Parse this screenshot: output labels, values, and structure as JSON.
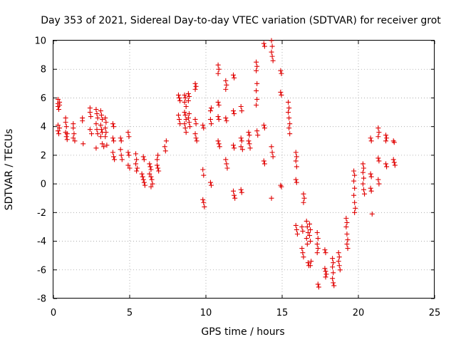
{
  "chart_data": {
    "type": "scatter",
    "title": "Day 353 of 2021, Sidereal Day-to-day VTEC variation (SDTVAR) for receiver grot",
    "xlabel": "GPS time / hours",
    "ylabel": "SDTVAR / TECUs",
    "xlim": [
      0,
      25
    ],
    "ylim": [
      -8,
      10
    ],
    "xticks": [
      "0",
      "5",
      "10",
      "15",
      "20",
      "25"
    ],
    "yticks": [
      "-8",
      "-6",
      "-4",
      "-2",
      "0",
      "2",
      "4",
      "6",
      "8",
      "10"
    ],
    "grid": true,
    "marker": "+",
    "color": "#e00000",
    "series": [
      {
        "name": "SDTVAR",
        "points": [
          [
            0.3,
            5.9
          ],
          [
            0.3,
            5.6
          ],
          [
            0.3,
            5.4
          ],
          [
            0.35,
            5.2
          ],
          [
            0.4,
            5.7
          ],
          [
            0.4,
            5.5
          ],
          [
            0.3,
            4.1
          ],
          [
            0.3,
            3.7
          ],
          [
            0.35,
            3.5
          ],
          [
            0.4,
            3.9
          ],
          [
            0.8,
            4.6
          ],
          [
            0.8,
            4.3
          ],
          [
            0.85,
            4.0
          ],
          [
            0.8,
            3.6
          ],
          [
            0.85,
            3.3
          ],
          [
            0.9,
            3.1
          ],
          [
            0.9,
            3.5
          ],
          [
            1.3,
            4.2
          ],
          [
            1.3,
            3.9
          ],
          [
            1.35,
            3.5
          ],
          [
            1.3,
            3.2
          ],
          [
            1.4,
            3.0
          ],
          [
            1.9,
            4.6
          ],
          [
            1.9,
            4.4
          ],
          [
            1.95,
            2.8
          ],
          [
            2.4,
            5.3
          ],
          [
            2.4,
            5.0
          ],
          [
            2.45,
            4.7
          ],
          [
            2.4,
            3.8
          ],
          [
            2.5,
            3.5
          ],
          [
            2.8,
            5.2
          ],
          [
            2.85,
            4.9
          ],
          [
            2.9,
            4.6
          ],
          [
            2.8,
            4.2
          ],
          [
            2.85,
            3.8
          ],
          [
            2.9,
            3.5
          ],
          [
            2.8,
            2.5
          ],
          [
            3.1,
            5.1
          ],
          [
            3.15,
            4.8
          ],
          [
            3.2,
            4.5
          ],
          [
            3.1,
            4.1
          ],
          [
            3.15,
            3.8
          ],
          [
            3.2,
            3.6
          ],
          [
            3.1,
            3.3
          ],
          [
            3.2,
            2.8
          ],
          [
            3.3,
            2.6
          ],
          [
            3.4,
            4.6
          ],
          [
            3.45,
            4.3
          ],
          [
            3.4,
            3.9
          ],
          [
            3.45,
            3.6
          ],
          [
            3.4,
            3.3
          ],
          [
            3.5,
            2.7
          ],
          [
            3.9,
            4.2
          ],
          [
            3.95,
            4.0
          ],
          [
            3.9,
            3.2
          ],
          [
            3.95,
            3.0
          ],
          [
            3.9,
            2.2
          ],
          [
            3.95,
            1.9
          ],
          [
            4.0,
            1.7
          ],
          [
            4.4,
            3.2
          ],
          [
            4.45,
            3.0
          ],
          [
            4.4,
            2.4
          ],
          [
            4.45,
            2.0
          ],
          [
            4.5,
            1.7
          ],
          [
            4.9,
            3.6
          ],
          [
            4.95,
            3.3
          ],
          [
            4.9,
            2.2
          ],
          [
            4.95,
            2.0
          ],
          [
            4.9,
            1.3
          ],
          [
            5.0,
            1.1
          ],
          [
            5.4,
            2.1
          ],
          [
            5.45,
            1.7
          ],
          [
            5.4,
            1.4
          ],
          [
            5.5,
            1.1
          ],
          [
            5.45,
            0.9
          ],
          [
            5.9,
            1.9
          ],
          [
            5.95,
            1.7
          ],
          [
            5.8,
            0.7
          ],
          [
            5.85,
            0.5
          ],
          [
            5.9,
            0.3
          ],
          [
            5.95,
            0.1
          ],
          [
            6.0,
            -0.1
          ],
          [
            6.3,
            1.4
          ],
          [
            6.35,
            1.2
          ],
          [
            6.4,
            1.0
          ],
          [
            6.3,
            0.7
          ],
          [
            6.4,
            0.5
          ],
          [
            6.45,
            0.3
          ],
          [
            6.5,
            0.0
          ],
          [
            6.4,
            -0.2
          ],
          [
            6.8,
            1.3
          ],
          [
            6.85,
            1.1
          ],
          [
            6.9,
            0.9
          ],
          [
            6.8,
            1.7
          ],
          [
            6.85,
            2.0
          ],
          [
            7.3,
            2.6
          ],
          [
            7.35,
            2.3
          ],
          [
            7.4,
            3.0
          ],
          [
            8.2,
            6.2
          ],
          [
            8.25,
            6.0
          ],
          [
            8.3,
            5.8
          ],
          [
            8.2,
            4.8
          ],
          [
            8.25,
            4.5
          ],
          [
            8.3,
            4.2
          ],
          [
            8.6,
            6.2
          ],
          [
            8.65,
            6.0
          ],
          [
            8.6,
            5.7
          ],
          [
            8.7,
            5.4
          ],
          [
            8.6,
            5.0
          ],
          [
            8.65,
            4.8
          ],
          [
            8.7,
            4.5
          ],
          [
            8.6,
            4.2
          ],
          [
            8.65,
            3.9
          ],
          [
            8.7,
            3.6
          ],
          [
            8.85,
            6.3
          ],
          [
            8.9,
            6.1
          ],
          [
            8.85,
            5.8
          ],
          [
            8.9,
            4.9
          ],
          [
            8.85,
            4.6
          ],
          [
            8.9,
            4.3
          ],
          [
            8.95,
            4.0
          ],
          [
            9.3,
            7.0
          ],
          [
            9.35,
            6.8
          ],
          [
            9.3,
            6.6
          ],
          [
            9.3,
            4.5
          ],
          [
            9.35,
            4.2
          ],
          [
            9.3,
            3.5
          ],
          [
            9.35,
            3.2
          ],
          [
            9.4,
            3.0
          ],
          [
            9.8,
            4.1
          ],
          [
            9.85,
            3.9
          ],
          [
            9.8,
            1.0
          ],
          [
            9.85,
            0.6
          ],
          [
            9.8,
            -1.1
          ],
          [
            9.85,
            -1.3
          ],
          [
            9.9,
            -1.6
          ],
          [
            10.3,
            4.5
          ],
          [
            10.35,
            4.2
          ],
          [
            10.3,
            5.1
          ],
          [
            10.35,
            5.3
          ],
          [
            10.3,
            0.1
          ],
          [
            10.35,
            -0.1
          ],
          [
            10.8,
            8.3
          ],
          [
            10.85,
            8.0
          ],
          [
            10.8,
            7.7
          ],
          [
            10.8,
            5.7
          ],
          [
            10.85,
            5.5
          ],
          [
            10.8,
            4.7
          ],
          [
            10.85,
            4.5
          ],
          [
            10.8,
            3.0
          ],
          [
            10.85,
            2.8
          ],
          [
            10.9,
            2.6
          ],
          [
            11.3,
            7.2
          ],
          [
            11.35,
            6.9
          ],
          [
            11.3,
            6.6
          ],
          [
            11.3,
            4.6
          ],
          [
            11.35,
            4.4
          ],
          [
            11.3,
            1.7
          ],
          [
            11.35,
            1.4
          ],
          [
            11.4,
            1.1
          ],
          [
            11.8,
            7.6
          ],
          [
            11.85,
            7.4
          ],
          [
            11.8,
            5.1
          ],
          [
            11.85,
            4.9
          ],
          [
            11.8,
            2.7
          ],
          [
            11.85,
            2.5
          ],
          [
            11.8,
            -0.5
          ],
          [
            11.85,
            -0.8
          ],
          [
            11.9,
            -1.0
          ],
          [
            12.3,
            5.4
          ],
          [
            12.35,
            5.1
          ],
          [
            12.3,
            3.2
          ],
          [
            12.35,
            3.0
          ],
          [
            12.3,
            2.6
          ],
          [
            12.4,
            2.4
          ],
          [
            12.3,
            -0.4
          ],
          [
            12.35,
            -0.6
          ],
          [
            12.8,
            3.6
          ],
          [
            12.85,
            3.4
          ],
          [
            12.8,
            3.0
          ],
          [
            12.85,
            2.8
          ],
          [
            12.9,
            2.5
          ],
          [
            13.3,
            8.5
          ],
          [
            13.35,
            8.2
          ],
          [
            13.3,
            7.9
          ],
          [
            13.35,
            7.0
          ],
          [
            13.3,
            6.5
          ],
          [
            13.35,
            5.9
          ],
          [
            13.3,
            5.5
          ],
          [
            13.35,
            3.7
          ],
          [
            13.4,
            3.4
          ],
          [
            13.8,
            9.8
          ],
          [
            13.85,
            9.6
          ],
          [
            13.8,
            4.1
          ],
          [
            13.85,
            3.9
          ],
          [
            13.8,
            1.6
          ],
          [
            13.85,
            1.4
          ],
          [
            14.3,
            10.0
          ],
          [
            14.35,
            9.6
          ],
          [
            14.3,
            9.2
          ],
          [
            14.35,
            8.9
          ],
          [
            14.4,
            8.6
          ],
          [
            14.3,
            2.6
          ],
          [
            14.35,
            2.2
          ],
          [
            14.4,
            1.9
          ],
          [
            14.3,
            -1.0
          ],
          [
            14.9,
            7.9
          ],
          [
            14.95,
            7.7
          ],
          [
            14.9,
            6.4
          ],
          [
            14.95,
            6.2
          ],
          [
            14.9,
            -0.1
          ],
          [
            14.95,
            -0.2
          ],
          [
            15.4,
            5.7
          ],
          [
            15.45,
            5.3
          ],
          [
            15.4,
            5.0
          ],
          [
            15.45,
            4.6
          ],
          [
            15.5,
            4.2
          ],
          [
            15.45,
            3.9
          ],
          [
            15.5,
            3.5
          ],
          [
            15.9,
            2.2
          ],
          [
            15.95,
            1.9
          ],
          [
            15.9,
            1.6
          ],
          [
            15.95,
            1.2
          ],
          [
            15.9,
            0.3
          ],
          [
            15.95,
            0.1
          ],
          [
            15.9,
            -2.9
          ],
          [
            15.95,
            -3.2
          ],
          [
            16.0,
            -3.5
          ],
          [
            16.4,
            -0.7
          ],
          [
            16.45,
            -1.0
          ],
          [
            16.4,
            -1.3
          ],
          [
            16.3,
            -3.0
          ],
          [
            16.35,
            -3.3
          ],
          [
            16.3,
            -4.5
          ],
          [
            16.35,
            -4.8
          ],
          [
            16.4,
            -5.1
          ],
          [
            16.6,
            -2.6
          ],
          [
            16.65,
            -3.0
          ],
          [
            16.7,
            -3.4
          ],
          [
            16.6,
            -3.8
          ],
          [
            16.65,
            -4.2
          ],
          [
            16.7,
            -5.5
          ],
          [
            16.75,
            -5.7
          ],
          [
            16.8,
            -2.8
          ],
          [
            16.85,
            -3.2
          ],
          [
            16.8,
            -3.6
          ],
          [
            16.85,
            -4.0
          ],
          [
            16.9,
            -5.4
          ],
          [
            16.85,
            -5.7
          ],
          [
            17.3,
            -3.4
          ],
          [
            17.35,
            -3.8
          ],
          [
            17.3,
            -4.2
          ],
          [
            17.35,
            -4.5
          ],
          [
            17.3,
            -4.8
          ],
          [
            17.35,
            -7.0
          ],
          [
            17.4,
            -7.2
          ],
          [
            17.8,
            -4.6
          ],
          [
            17.85,
            -4.8
          ],
          [
            17.8,
            -5.9
          ],
          [
            17.85,
            -6.1
          ],
          [
            17.9,
            -6.3
          ],
          [
            17.85,
            -6.5
          ],
          [
            18.3,
            -5.2
          ],
          [
            18.35,
            -5.5
          ],
          [
            18.3,
            -5.8
          ],
          [
            18.35,
            -6.2
          ],
          [
            18.3,
            -6.6
          ],
          [
            18.35,
            -6.9
          ],
          [
            18.4,
            -7.1
          ],
          [
            18.7,
            -4.8
          ],
          [
            18.75,
            -5.1
          ],
          [
            18.7,
            -5.4
          ],
          [
            18.75,
            -5.7
          ],
          [
            18.8,
            -6.0
          ],
          [
            19.2,
            -2.4
          ],
          [
            19.25,
            -2.7
          ],
          [
            19.2,
            -3.0
          ],
          [
            19.25,
            -3.5
          ],
          [
            19.3,
            -3.9
          ],
          [
            19.25,
            -4.2
          ],
          [
            19.3,
            -4.5
          ],
          [
            19.7,
            0.9
          ],
          [
            19.75,
            0.6
          ],
          [
            19.7,
            0.2
          ],
          [
            19.75,
            -0.3
          ],
          [
            19.7,
            -0.8
          ],
          [
            19.75,
            -1.3
          ],
          [
            19.8,
            -1.7
          ],
          [
            19.75,
            -2.0
          ],
          [
            20.3,
            1.4
          ],
          [
            20.35,
            1.1
          ],
          [
            20.3,
            0.8
          ],
          [
            20.35,
            0.4
          ],
          [
            20.3,
            0.0
          ],
          [
            20.35,
            -0.4
          ],
          [
            20.4,
            -0.7
          ],
          [
            20.8,
            3.2
          ],
          [
            20.85,
            3.0
          ],
          [
            20.8,
            0.7
          ],
          [
            20.85,
            0.5
          ],
          [
            20.8,
            -0.3
          ],
          [
            20.85,
            -0.5
          ],
          [
            20.9,
            -2.1
          ],
          [
            21.3,
            3.9
          ],
          [
            21.35,
            3.6
          ],
          [
            21.3,
            3.3
          ],
          [
            21.3,
            1.8
          ],
          [
            21.35,
            1.6
          ],
          [
            21.3,
            0.3
          ],
          [
            21.35,
            0.0
          ],
          [
            21.8,
            3.4
          ],
          [
            21.85,
            3.2
          ],
          [
            21.8,
            3.0
          ],
          [
            21.8,
            1.4
          ],
          [
            21.85,
            1.2
          ],
          [
            22.3,
            3.0
          ],
          [
            22.35,
            2.9
          ],
          [
            22.3,
            1.7
          ],
          [
            22.35,
            1.5
          ],
          [
            22.4,
            1.3
          ]
        ]
      }
    ]
  }
}
